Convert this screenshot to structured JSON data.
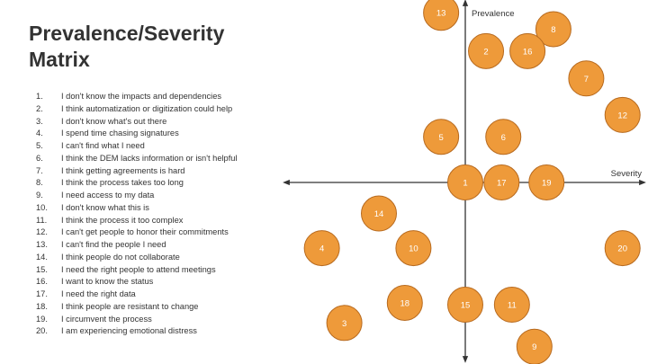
{
  "title": {
    "line1": "Prevalence/Severity",
    "line2": "Matrix"
  },
  "issues": [
    {
      "num": "1.",
      "text": "I don't know the impacts and dependencies"
    },
    {
      "num": "2.",
      "text": "I think automatization or digitization could help"
    },
    {
      "num": "3.",
      "text": "I don't know what's out there"
    },
    {
      "num": "4.",
      "text": "I spend time chasing signatures"
    },
    {
      "num": "5.",
      "text": "I can't find what I need"
    },
    {
      "num": "6.",
      "text": "I think the DEM lacks information or isn't helpful"
    },
    {
      "num": "7.",
      "text": "I think getting agreements is hard"
    },
    {
      "num": "8.",
      "text": "I think the process takes too long"
    },
    {
      "num": "9.",
      "text": "I need access to my data"
    },
    {
      "num": "10.",
      "text": "I don't know what this is"
    },
    {
      "num": "11.",
      "text": "I think the process it too complex"
    },
    {
      "num": "12.",
      "text": "I can't get people to honor their commitments"
    },
    {
      "num": "13.",
      "text": "I can't find the people I need"
    },
    {
      "num": "14.",
      "text": "I think people do not collaborate"
    },
    {
      "num": "15.",
      "text": "I need the right people to attend meetings"
    },
    {
      "num": "16.",
      "text": "I want to know the status"
    },
    {
      "num": "17.",
      "text": "I need the right data"
    },
    {
      "num": "18.",
      "text": "I think people are resistant to change"
    },
    {
      "num": "19.",
      "text": "I circumvent the process"
    },
    {
      "num": "20.",
      "text": "I am experiencing emotional distress"
    }
  ],
  "axes": {
    "x_label": "Severity",
    "y_label": "Prevalence"
  },
  "colors": {
    "bubble_fill": "#EE9A3A",
    "bubble_stroke": "#B76A1F",
    "bubble_text": "#ffffff",
    "axis": "#333333",
    "text": "#333333"
  },
  "chart_data": {
    "type": "scatter",
    "xlabel": "Severity",
    "ylabel": "Prevalence",
    "xlim": [
      -1,
      1
    ],
    "ylim": [
      -1,
      1
    ],
    "points": [
      {
        "label": "1",
        "x": 0.0,
        "y": 0.0
      },
      {
        "label": "2",
        "x": 0.12,
        "y": 0.72
      },
      {
        "label": "3",
        "x": -0.7,
        "y": -0.77
      },
      {
        "label": "4",
        "x": -0.83,
        "y": -0.36
      },
      {
        "label": "5",
        "x": -0.14,
        "y": 0.25
      },
      {
        "label": "6",
        "x": 0.22,
        "y": 0.25
      },
      {
        "label": "7",
        "x": 0.7,
        "y": 0.57
      },
      {
        "label": "8",
        "x": 0.51,
        "y": 0.84
      },
      {
        "label": "9",
        "x": 0.4,
        "y": -0.9
      },
      {
        "label": "10",
        "x": -0.3,
        "y": -0.36
      },
      {
        "label": "11",
        "x": 0.27,
        "y": -0.67
      },
      {
        "label": "12",
        "x": 0.91,
        "y": 0.37
      },
      {
        "label": "13",
        "x": -0.14,
        "y": 0.93
      },
      {
        "label": "14",
        "x": -0.5,
        "y": -0.17
      },
      {
        "label": "15",
        "x": 0.0,
        "y": -0.67
      },
      {
        "label": "16",
        "x": 0.36,
        "y": 0.72
      },
      {
        "label": "17",
        "x": 0.21,
        "y": 0.0
      },
      {
        "label": "18",
        "x": -0.35,
        "y": -0.66
      },
      {
        "label": "19",
        "x": 0.47,
        "y": 0.0
      },
      {
        "label": "20",
        "x": 0.91,
        "y": -0.36
      }
    ]
  }
}
